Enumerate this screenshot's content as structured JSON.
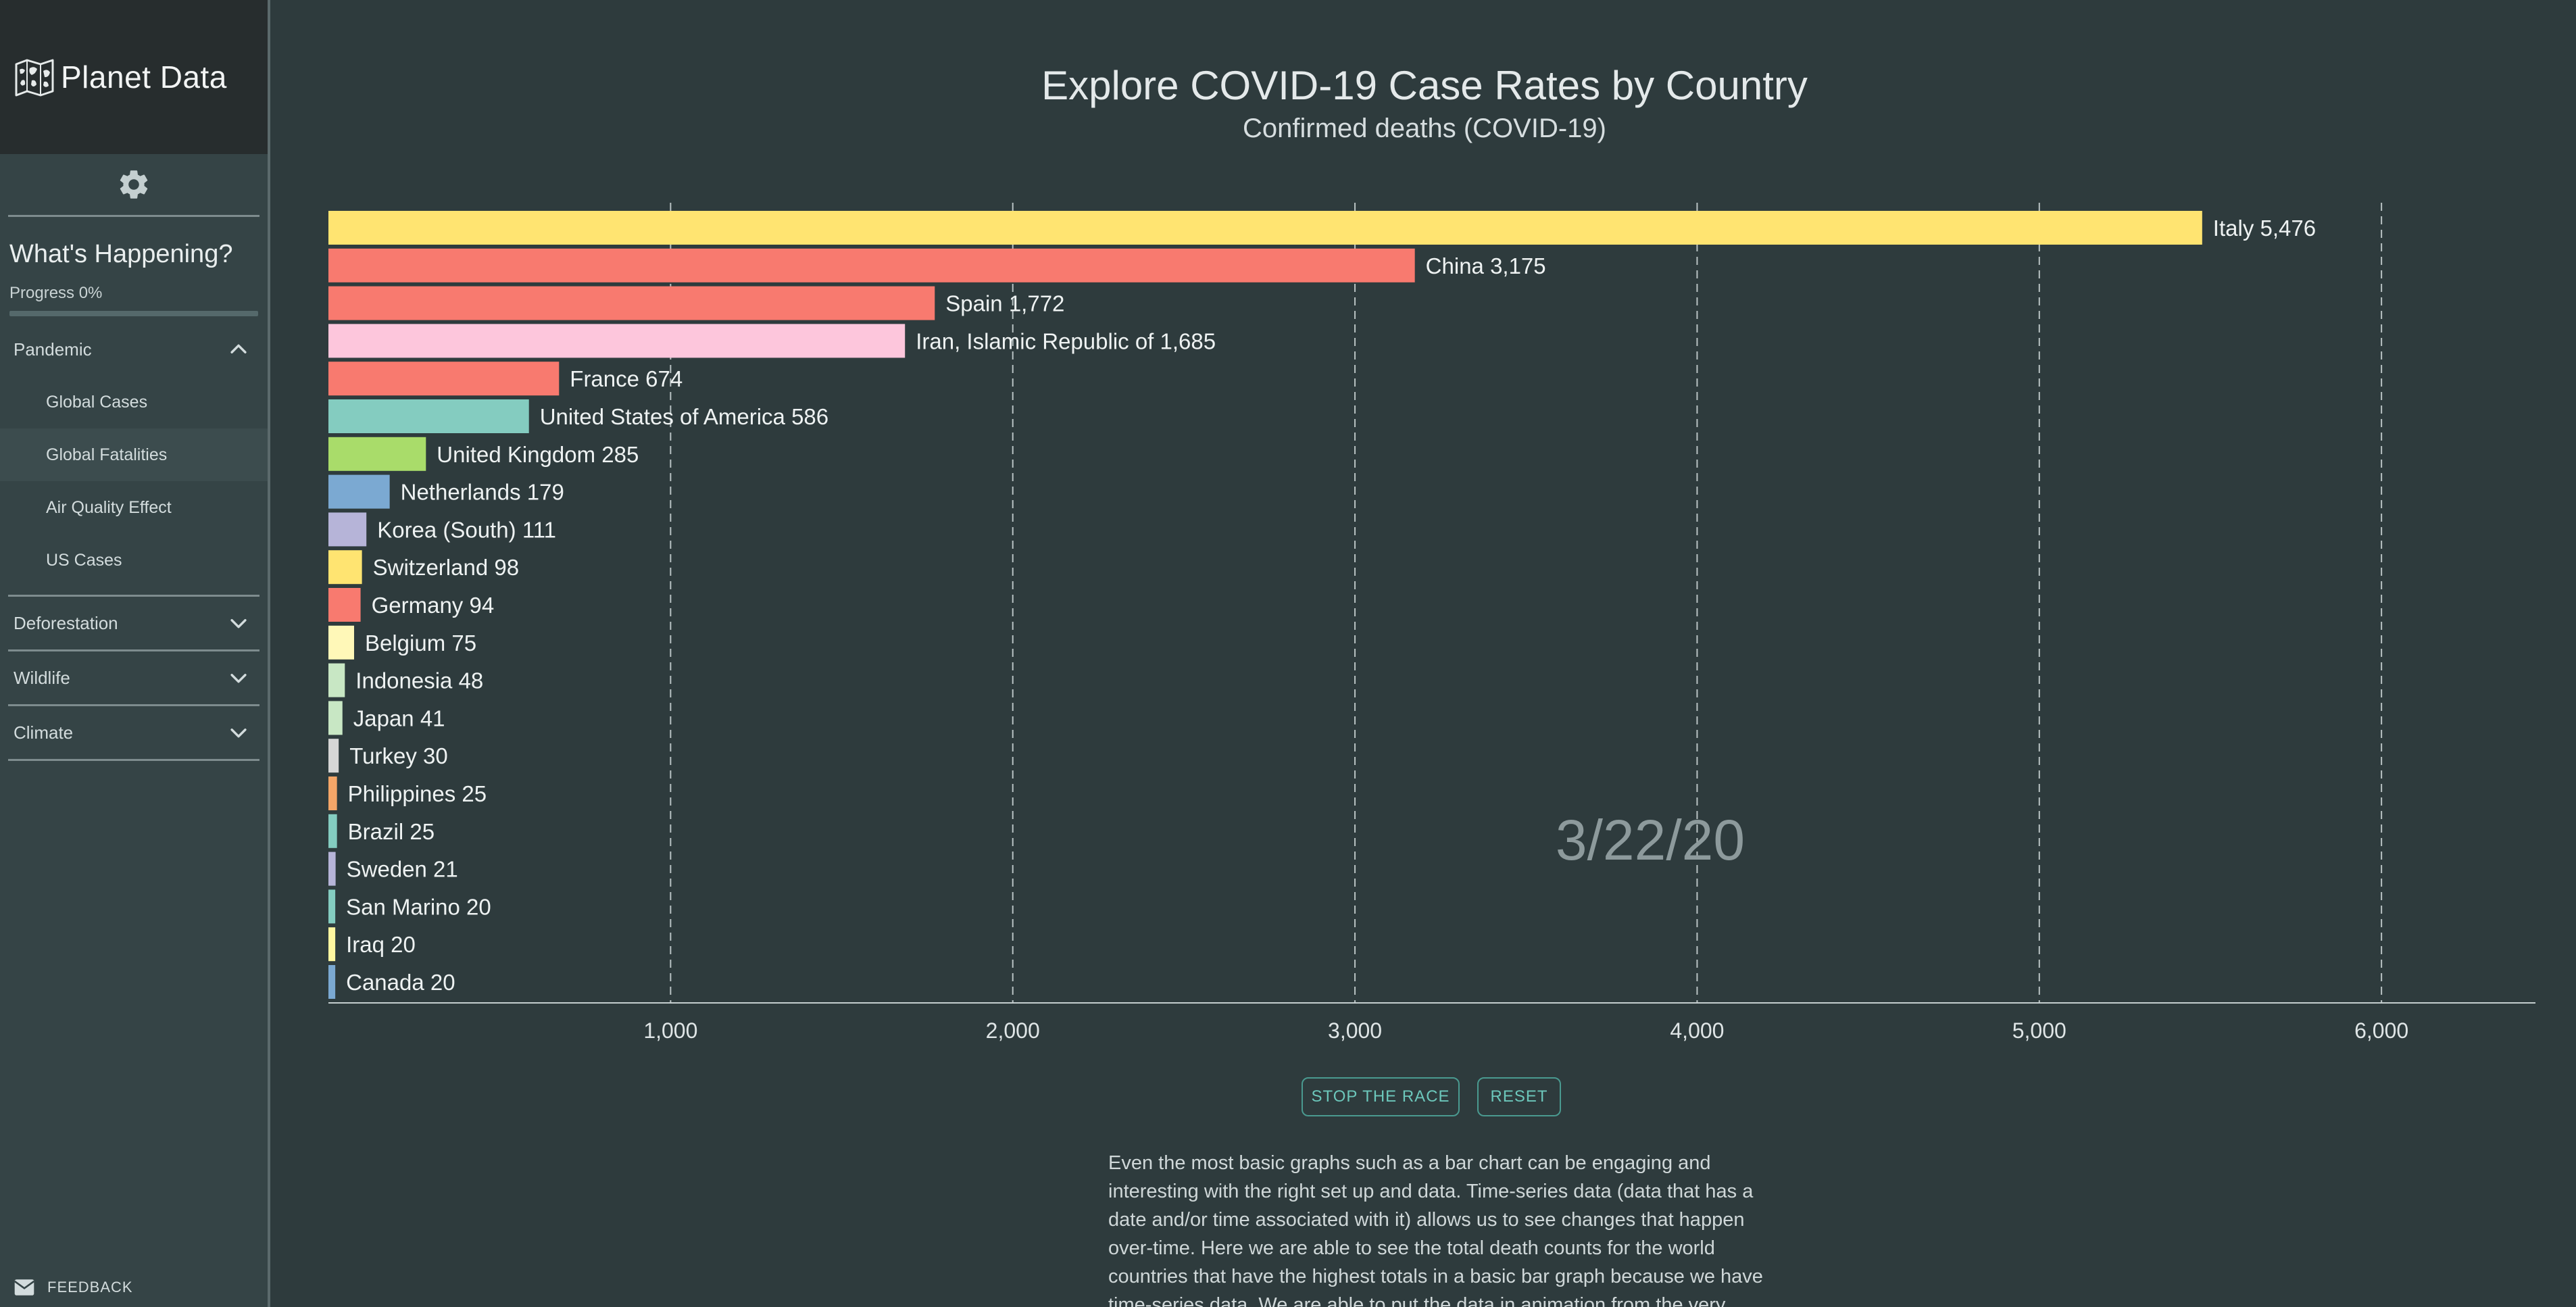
{
  "app": {
    "title": "Planet Data"
  },
  "sidebar": {
    "heading": "What's Happening?",
    "progress_label": "Progress 0%",
    "progress_value": 0,
    "sections": [
      {
        "label": "Pandemic",
        "expanded": true,
        "items": [
          {
            "label": "Global Cases"
          },
          {
            "label": "Global Fatalities",
            "active": true
          },
          {
            "label": "Air Quality Effect"
          },
          {
            "label": "US Cases"
          }
        ]
      },
      {
        "label": "Deforestation",
        "expanded": false
      },
      {
        "label": "Wildlife",
        "expanded": false
      },
      {
        "label": "Climate",
        "expanded": false
      }
    ],
    "feedback_label": "FEEDBACK"
  },
  "main": {
    "title": "Explore COVID-19 Case Rates by Country",
    "subtitle": "Confirmed deaths (COVID-19)",
    "buttons": {
      "stop": "STOP THE RACE",
      "reset": "RESET"
    },
    "description": "Even the most basic graphs such as a bar chart can be engaging and interesting with the right set up and data. Time-series data (data that has a date and/or time associated with it) allows us to see changes that happen over-time. Here we are able to see the total death counts for the world countries that have the highest totals in a basic bar graph because we have time-series data. We are able to put the data in animation from the very"
  },
  "colors": {
    "background": "#2e3b3d",
    "sidebar": "#354446",
    "brand_bar": "#272d2e",
    "accent": "#6cc7bb"
  },
  "chart_data": {
    "type": "bar",
    "orientation": "horizontal",
    "date": "3/22/20",
    "xlim": [
      0,
      6450
    ],
    "xticks": [
      1000,
      2000,
      3000,
      4000,
      5000,
      6000
    ],
    "xtick_labels": [
      "1,000",
      "2,000",
      "3,000",
      "4,000",
      "5,000",
      "6,000"
    ],
    "grid": "vertical dashed",
    "categories": [
      "Italy",
      "China",
      "Spain",
      "Iran, Islamic Republic of",
      "France",
      "United States of America",
      "United Kingdom",
      "Netherlands",
      "Korea (South)",
      "Switzerland",
      "Germany",
      "Belgium",
      "Indonesia",
      "Japan",
      "Turkey",
      "Philippines",
      "Brazil",
      "Sweden",
      "San Marino",
      "Iraq",
      "Canada"
    ],
    "values": [
      5476,
      3175,
      1772,
      1685,
      674,
      586,
      285,
      179,
      111,
      98,
      94,
      75,
      48,
      41,
      30,
      25,
      25,
      21,
      20,
      20,
      20
    ],
    "value_labels": [
      "5,476",
      "3,175",
      "1,772",
      "1,685",
      "674",
      "586",
      "285",
      "179",
      "111",
      "98",
      "94",
      "75",
      "48",
      "41",
      "30",
      "25",
      "25",
      "21",
      "20",
      "20",
      "20"
    ],
    "colors": [
      "#ffe471",
      "#f87a6f",
      "#f87a6f",
      "#fdc6dc",
      "#f87a6f",
      "#84ccc0",
      "#a9dc6a",
      "#7ba9d2",
      "#b6b4d8",
      "#ffe471",
      "#f87a6f",
      "#fff8b8",
      "#c8e7c4",
      "#c8e7c4",
      "#d6d6d6",
      "#f4a668",
      "#84ccc0",
      "#b6b4d8",
      "#84ccc0",
      "#fff7a0",
      "#7ba9d2"
    ]
  }
}
